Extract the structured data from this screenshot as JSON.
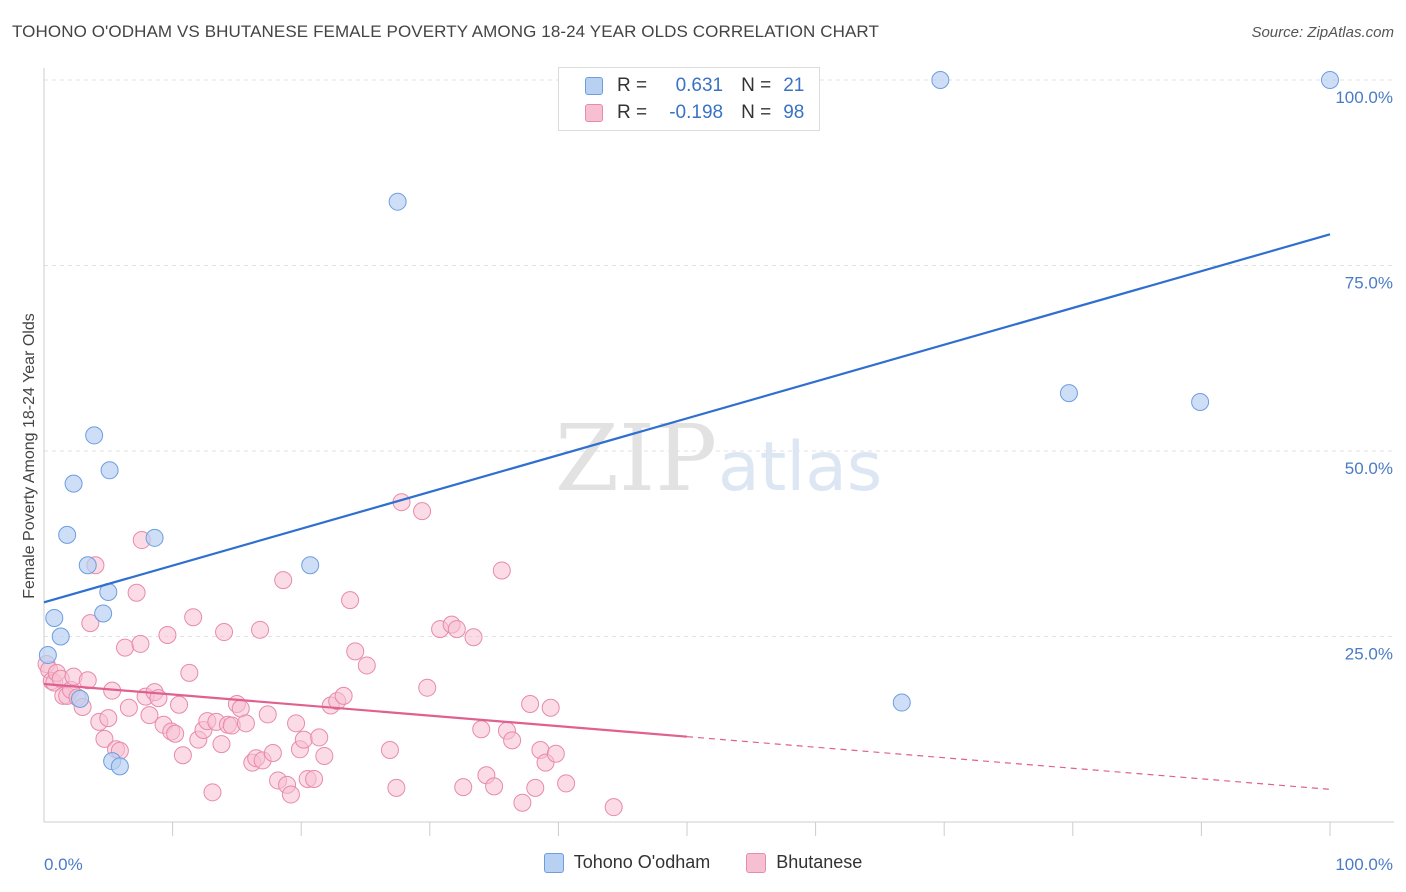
{
  "header": {
    "title": "TOHONO O'ODHAM VS BHUTANESE FEMALE POVERTY AMONG 18-24 YEAR OLDS CORRELATION CHART",
    "source": "Source: ZipAtlas.com"
  },
  "watermark": {
    "zip": "ZIP",
    "atlas": "atlas"
  },
  "legend": {
    "rows": [
      {
        "r_label": "R =",
        "r_value": "0.631",
        "n_label": "N =",
        "n_value": "21"
      },
      {
        "r_label": "R =",
        "r_value": "-0.198",
        "n_label": "N =",
        "n_value": "98"
      }
    ]
  },
  "bottom_legend": {
    "items": [
      "Tohono O'odham",
      "Bhutanese"
    ]
  },
  "colors": {
    "blue_fill": "#b8d0f2",
    "blue_stroke": "#6d9ee0",
    "blue_line": "#2f6fd0",
    "pink_fill": "#f7c0d2",
    "pink_stroke": "#e88aab",
    "pink_line": "#e0608f",
    "tick_text": "#4a7cc4",
    "grid": "#e2e2e2"
  },
  "chart_data": {
    "type": "scatter",
    "title": "TOHONO O'ODHAM VS BHUTANESE FEMALE POVERTY AMONG 18-24 YEAR OLDS CORRELATION CHART",
    "xlabel": "",
    "ylabel": "Female Poverty Among 18-24 Year Olds",
    "xlim": [
      0,
      100
    ],
    "ylim": [
      0,
      100
    ],
    "x_tick_labels": [
      {
        "value": 0,
        "label": "0.0%"
      },
      {
        "value": 100,
        "label": "100.0%"
      }
    ],
    "y_tick_labels": [
      {
        "value": 25,
        "label": "25.0%"
      },
      {
        "value": 50,
        "label": "50.0%"
      },
      {
        "value": 75,
        "label": "75.0%"
      },
      {
        "value": 100,
        "label": "100.0%"
      }
    ],
    "grid": true,
    "legend_placement": "top-center",
    "series": [
      {
        "name": "Tohono O'odham",
        "r": 0.631,
        "n": 21,
        "points": [
          [
            0.8,
            27.5
          ],
          [
            1.3,
            25
          ],
          [
            0.3,
            22.5
          ],
          [
            1.8,
            38.7
          ],
          [
            2.3,
            45.6
          ],
          [
            3.4,
            34.6
          ],
          [
            3.9,
            52.1
          ],
          [
            4.6,
            28.1
          ],
          [
            5.0,
            31.0
          ],
          [
            5.1,
            47.4
          ],
          [
            5.3,
            8.2
          ],
          [
            5.9,
            7.5
          ],
          [
            8.6,
            38.3
          ],
          [
            2.8,
            16.6
          ],
          [
            20.7,
            34.6
          ],
          [
            27.5,
            83.6
          ],
          [
            66.7,
            16.1
          ],
          [
            69.7,
            100
          ],
          [
            79.7,
            57.8
          ],
          [
            89.9,
            56.6
          ],
          [
            100,
            100
          ]
        ],
        "trend": {
          "x0": 0,
          "y0": 29.6,
          "x1": 100,
          "y1": 79.2
        }
      },
      {
        "name": "Bhutanese",
        "r": -0.198,
        "n": 98,
        "points": [
          [
            0.2,
            21.3
          ],
          [
            0.4,
            20.5
          ],
          [
            0.6,
            19.0
          ],
          [
            0.8,
            18.8
          ],
          [
            1.0,
            20.1
          ],
          [
            1.3,
            19.3
          ],
          [
            1.5,
            17.0
          ],
          [
            1.8,
            17.0
          ],
          [
            2.1,
            17.8
          ],
          [
            2.3,
            19.6
          ],
          [
            2.6,
            16.8
          ],
          [
            3.0,
            15.5
          ],
          [
            3.4,
            19.1
          ],
          [
            3.6,
            26.8
          ],
          [
            4.0,
            34.6
          ],
          [
            4.3,
            13.5
          ],
          [
            4.7,
            11.2
          ],
          [
            5.0,
            14.0
          ],
          [
            5.3,
            17.7
          ],
          [
            5.6,
            9.8
          ],
          [
            5.9,
            9.6
          ],
          [
            6.3,
            23.5
          ],
          [
            6.6,
            15.4
          ],
          [
            7.2,
            30.9
          ],
          [
            7.5,
            24.0
          ],
          [
            7.6,
            38.0
          ],
          [
            7.9,
            16.9
          ],
          [
            8.2,
            14.4
          ],
          [
            8.6,
            17.5
          ],
          [
            8.9,
            16.7
          ],
          [
            9.3,
            13.1
          ],
          [
            9.6,
            25.2
          ],
          [
            9.9,
            12.2
          ],
          [
            10.2,
            11.9
          ],
          [
            10.5,
            15.8
          ],
          [
            10.8,
            9.0
          ],
          [
            11.3,
            20.1
          ],
          [
            11.6,
            27.6
          ],
          [
            12.0,
            11.1
          ],
          [
            12.4,
            12.4
          ],
          [
            12.7,
            13.6
          ],
          [
            13.1,
            4.0
          ],
          [
            13.4,
            13.5
          ],
          [
            13.8,
            10.5
          ],
          [
            14.0,
            25.6
          ],
          [
            14.3,
            13.1
          ],
          [
            14.6,
            13.0
          ],
          [
            15.0,
            15.9
          ],
          [
            15.3,
            15.3
          ],
          [
            15.7,
            13.3
          ],
          [
            16.2,
            8.0
          ],
          [
            16.5,
            8.6
          ],
          [
            16.8,
            25.9
          ],
          [
            17.0,
            8.3
          ],
          [
            17.4,
            14.5
          ],
          [
            17.8,
            9.3
          ],
          [
            18.2,
            5.6
          ],
          [
            18.6,
            32.6
          ],
          [
            18.9,
            5.0
          ],
          [
            19.2,
            3.7
          ],
          [
            19.6,
            13.3
          ],
          [
            19.9,
            9.8
          ],
          [
            20.2,
            11.1
          ],
          [
            20.5,
            5.8
          ],
          [
            21.0,
            5.8
          ],
          [
            21.4,
            11.4
          ],
          [
            21.8,
            8.9
          ],
          [
            22.3,
            15.7
          ],
          [
            22.8,
            16.3
          ],
          [
            23.3,
            17.0
          ],
          [
            23.8,
            29.9
          ],
          [
            24.2,
            23.0
          ],
          [
            25.1,
            21.1
          ],
          [
            26.9,
            9.7
          ],
          [
            27.4,
            4.6
          ],
          [
            27.8,
            43.1
          ],
          [
            29.4,
            41.9
          ],
          [
            29.8,
            18.1
          ],
          [
            30.8,
            26.0
          ],
          [
            31.7,
            26.6
          ],
          [
            32.1,
            26.0
          ],
          [
            32.6,
            4.7
          ],
          [
            33.4,
            24.9
          ],
          [
            34.0,
            12.5
          ],
          [
            34.4,
            6.3
          ],
          [
            35.0,
            4.8
          ],
          [
            35.6,
            33.9
          ],
          [
            36.0,
            12.3
          ],
          [
            36.4,
            11.0
          ],
          [
            37.2,
            2.6
          ],
          [
            37.8,
            15.9
          ],
          [
            38.2,
            4.6
          ],
          [
            38.6,
            9.7
          ],
          [
            39.0,
            8.0
          ],
          [
            39.4,
            15.4
          ],
          [
            39.8,
            9.2
          ],
          [
            40.6,
            5.2
          ],
          [
            44.3,
            2.0
          ]
        ],
        "trend_solid": {
          "x0": 0,
          "y0": 18.6,
          "x1": 50,
          "y1": 11.5
        },
        "trend_dashed": {
          "x0": 50,
          "y0": 11.5,
          "x1": 100,
          "y1": 4.4
        }
      }
    ]
  }
}
